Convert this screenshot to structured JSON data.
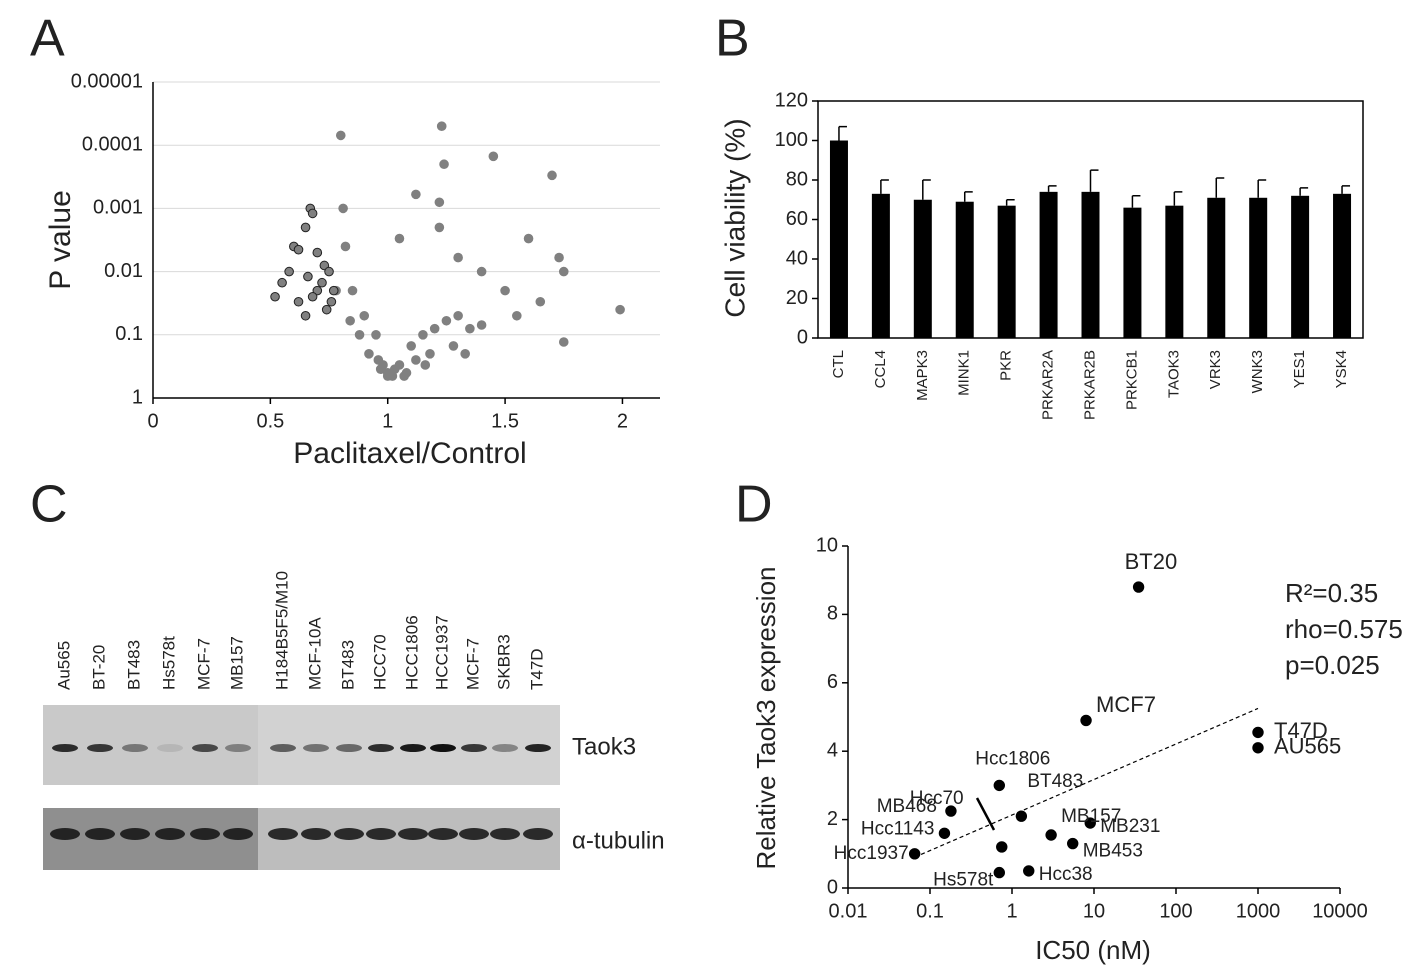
{
  "chart_data": [
    {
      "type": "scatter",
      "panel_label": "A",
      "y_label": "P value",
      "x_label": "Paclitaxel/Control",
      "xlim": [
        0,
        2.16
      ],
      "xticks": [
        0,
        0.5,
        1,
        1.5,
        2
      ],
      "ylim": [
        1,
        1e-05
      ],
      "yticks": [
        1,
        0.1,
        0.01,
        0.001,
        0.0001,
        1e-05
      ],
      "y_scale": "log",
      "grid": true,
      "series": [
        {
          "color": "#808080",
          "edgecolor": "#808080",
          "x": [
            0.8,
            1.23,
            1.45,
            1.7,
            1.24,
            1.22,
            1.12,
            1.22,
            1.05,
            0.81,
            0.82,
            1.6,
            1.75,
            1.73,
            1.99,
            1.75,
            1.3,
            1.4,
            1.5,
            1.65,
            0.85,
            0.9,
            0.95,
            0.98,
            1.0,
            1.02,
            1.05,
            1.1,
            1.15,
            1.2,
            1.25,
            1.3,
            1.35,
            0.88,
            0.92,
            0.97,
            1.08,
            1.12,
            1.18,
            1.28,
            1.4,
            1.55,
            0.78,
            0.84,
            1.0,
            1.03,
            0.96,
            1.07,
            1.16,
            1.33
          ],
          "values": [
            7e-05,
            5e-05,
            0.00015,
            0.0003,
            0.0002,
            0.0008,
            0.0006,
            0.002,
            0.003,
            0.001,
            0.004,
            0.003,
            0.01,
            0.006,
            0.04,
            0.13,
            0.006,
            0.01,
            0.02,
            0.03,
            0.02,
            0.05,
            0.1,
            0.3,
            0.4,
            0.45,
            0.3,
            0.15,
            0.1,
            0.08,
            0.06,
            0.05,
            0.08,
            0.1,
            0.2,
            0.35,
            0.4,
            0.25,
            0.2,
            0.15,
            0.07,
            0.05,
            0.02,
            0.06,
            0.45,
            0.35,
            0.25,
            0.45,
            0.3,
            0.2
          ]
        },
        {
          "color": "#808080",
          "edgecolor": "#222222",
          "x": [
            0.52,
            0.55,
            0.58,
            0.6,
            0.62,
            0.65,
            0.67,
            0.68,
            0.62,
            0.65,
            0.7,
            0.72,
            0.73,
            0.75,
            0.76,
            0.7,
            0.74,
            0.68,
            0.77,
            0.66
          ],
          "values": [
            0.025,
            0.015,
            0.01,
            0.004,
            0.0045,
            0.002,
            0.001,
            0.0012,
            0.03,
            0.05,
            0.02,
            0.015,
            0.008,
            0.01,
            0.03,
            0.005,
            0.04,
            0.025,
            0.02,
            0.012
          ]
        }
      ]
    },
    {
      "type": "bar",
      "panel_label": "B",
      "y_label": "Cell viability (%)",
      "color": "#000000",
      "categories": [
        "CTL",
        "CCL4",
        "MAPK3",
        "MINK1",
        "PKR",
        "PRKAR2A",
        "PRKAR2B",
        "PRKCB1",
        "TAOK3",
        "VRK3",
        "WNK3",
        "YES1",
        "YSK4"
      ],
      "values": [
        100,
        73,
        70,
        69,
        67,
        74,
        74,
        66,
        67,
        71,
        71,
        72,
        73
      ],
      "errors": [
        7,
        7,
        10,
        5,
        3,
        3,
        11,
        6,
        7,
        10,
        9,
        4,
        4
      ],
      "ylim": [
        0,
        120
      ],
      "yticks": [
        0,
        20,
        40,
        60,
        80,
        100,
        120
      ]
    },
    {
      "type": "scatter",
      "panel_label": "D",
      "y_label": "Relative Taok3 expression",
      "x_label": "IC50 (nM)",
      "xlim": [
        0.01,
        10000
      ],
      "xticks": [
        0.01,
        0.1,
        1,
        10,
        100,
        1000,
        10000
      ],
      "x_scale": "log",
      "ylim": [
        0,
        10
      ],
      "yticks": [
        0,
        2,
        4,
        6,
        8,
        10
      ],
      "series": [
        {
          "color": "#000000",
          "edgecolor": "#000000",
          "x": [
            35,
            8,
            1000,
            1000,
            0.7,
            1.3,
            0.18,
            0.15,
            0.065,
            0.75,
            0.7,
            1.6,
            5.5,
            9,
            3
          ],
          "values": [
            8.8,
            4.9,
            4.55,
            4.1,
            3.0,
            2.1,
            2.25,
            1.6,
            1.0,
            1.2,
            0.45,
            0.5,
            1.3,
            1.9,
            1.55
          ]
        }
      ],
      "point_labels": [
        "BT20",
        "MCF7",
        "T47D",
        "AU565",
        "Hcc1806",
        "BT483",
        "MB468",
        "Hcc1143",
        "Hcc1937",
        "Hcc70",
        "Hs578t",
        "Hcc38",
        "MB453",
        "MB231",
        "MB157"
      ],
      "trendline": {
        "x": [
          0.065,
          1000
        ],
        "values": [
          0.9,
          5.25
        ]
      },
      "annotations": [
        "R²=0.35",
        "rho=0.575",
        "p=0.025"
      ]
    }
  ],
  "blot": {
    "panel_label": "C",
    "lanes_left": [
      "Au565",
      "BT-20",
      "BT483",
      "Hs578t",
      "MCF-7",
      "MB157"
    ],
    "lanes_right": [
      "H184B5F5/M10",
      "MCF-10A",
      "BT483",
      "HCC70",
      "HCC1806",
      "HCC1937",
      "MCF-7",
      "SKBR3",
      "T47D"
    ],
    "bands": [
      "Taok3",
      "α-tubulin"
    ]
  }
}
